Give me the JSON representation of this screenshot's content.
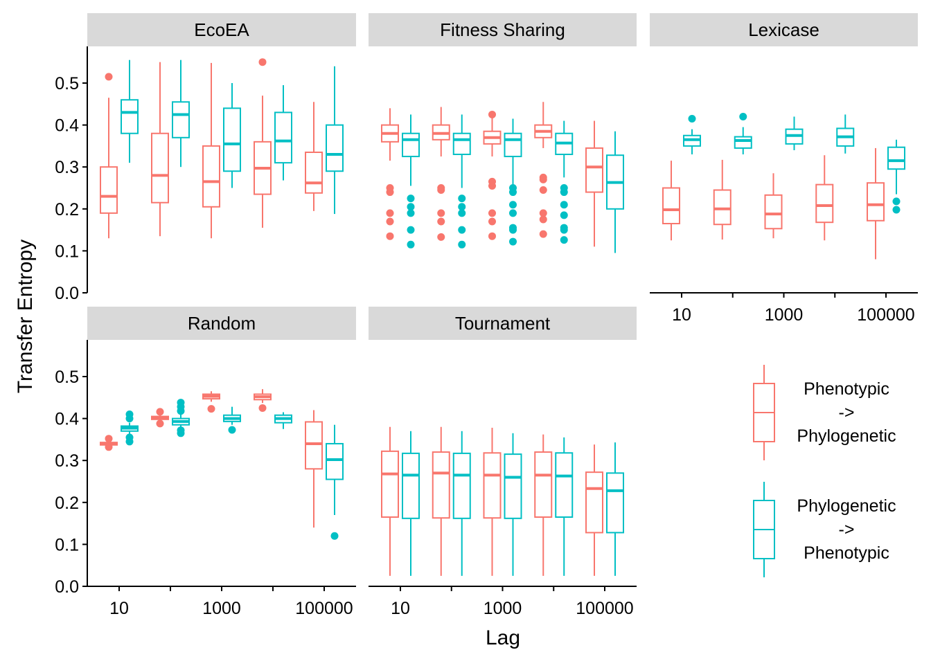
{
  "chart_data": {
    "type": "boxplot",
    "xlabel": "Lag",
    "ylabel": "Transfer Entropy",
    "x_scale": "log10",
    "x_tick_labels": [
      "10",
      "1000",
      "100000"
    ],
    "ylim": [
      0,
      0.55
    ],
    "y_ticks": [
      "0.0",
      "0.1",
      "0.2",
      "0.3",
      "0.4",
      "0.5"
    ],
    "grid": false,
    "legend_position": "right",
    "colors": {
      "Phenotypic -> Phylogenetic": "#F8766D",
      "Phylogenetic -> Phenotypic": "#00BFC4"
    },
    "series": [
      {
        "name": "Phenotypic -> Phylogenetic",
        "label_lines": [
          "Phenotypic",
          "->",
          "Phylogenetic"
        ],
        "color": "#F8766D"
      },
      {
        "name": "Phylogenetic -> Phenotypic",
        "label_lines": [
          "Phylogenetic",
          "->",
          "Phenotypic"
        ],
        "color": "#00BFC4"
      }
    ],
    "panels": [
      {
        "title": "EcoEA",
        "boxes": [
          {
            "lag": 10,
            "series": 0,
            "min": 0.13,
            "q1": 0.19,
            "median": 0.23,
            "q3": 0.3,
            "max": 0.465,
            "outliers": [
              0.515
            ]
          },
          {
            "lag": 10,
            "series": 1,
            "min": 0.31,
            "q1": 0.38,
            "median": 0.43,
            "q3": 0.46,
            "max": 0.555,
            "outliers": []
          },
          {
            "lag": 100,
            "series": 0,
            "min": 0.135,
            "q1": 0.215,
            "median": 0.28,
            "q3": 0.38,
            "max": 0.55,
            "outliers": []
          },
          {
            "lag": 100,
            "series": 1,
            "min": 0.3,
            "q1": 0.37,
            "median": 0.425,
            "q3": 0.455,
            "max": 0.555,
            "outliers": []
          },
          {
            "lag": 1000,
            "series": 0,
            "min": 0.13,
            "q1": 0.205,
            "median": 0.265,
            "q3": 0.35,
            "max": 0.548,
            "outliers": []
          },
          {
            "lag": 1000,
            "series": 1,
            "min": 0.25,
            "q1": 0.29,
            "median": 0.355,
            "q3": 0.44,
            "max": 0.5,
            "outliers": []
          },
          {
            "lag": 10000,
            "series": 0,
            "min": 0.155,
            "q1": 0.235,
            "median": 0.297,
            "q3": 0.36,
            "max": 0.47,
            "outliers": [
              0.55
            ]
          },
          {
            "lag": 10000,
            "series": 1,
            "min": 0.268,
            "q1": 0.31,
            "median": 0.362,
            "q3": 0.43,
            "max": 0.495,
            "outliers": []
          },
          {
            "lag": 100000,
            "series": 0,
            "min": 0.195,
            "q1": 0.238,
            "median": 0.262,
            "q3": 0.335,
            "max": 0.455,
            "outliers": []
          },
          {
            "lag": 100000,
            "series": 1,
            "min": 0.188,
            "q1": 0.29,
            "median": 0.33,
            "q3": 0.4,
            "max": 0.54,
            "outliers": []
          }
        ]
      },
      {
        "title": "Fitness Sharing",
        "boxes": [
          {
            "lag": 10,
            "series": 0,
            "min": 0.315,
            "q1": 0.36,
            "median": 0.38,
            "q3": 0.4,
            "max": 0.44,
            "outliers": [
              0.24,
              0.25,
              0.19,
              0.17,
              0.135
            ]
          },
          {
            "lag": 10,
            "series": 1,
            "min": 0.255,
            "q1": 0.325,
            "median": 0.365,
            "q3": 0.38,
            "max": 0.425,
            "outliers": [
              0.225,
              0.205,
              0.19,
              0.15,
              0.115
            ]
          },
          {
            "lag": 100,
            "series": 0,
            "min": 0.325,
            "q1": 0.365,
            "median": 0.38,
            "q3": 0.4,
            "max": 0.443,
            "outliers": [
              0.245,
              0.25,
              0.19,
              0.17,
              0.133
            ]
          },
          {
            "lag": 100,
            "series": 1,
            "min": 0.25,
            "q1": 0.33,
            "median": 0.365,
            "q3": 0.38,
            "max": 0.425,
            "outliers": [
              0.225,
              0.205,
              0.19,
              0.15,
              0.115
            ]
          },
          {
            "lag": 1000,
            "series": 0,
            "min": 0.325,
            "q1": 0.355,
            "median": 0.37,
            "q3": 0.385,
            "max": 0.425,
            "outliers": [
              0.425,
              0.265,
              0.255,
              0.19,
              0.17,
              0.135
            ]
          },
          {
            "lag": 1000,
            "series": 1,
            "min": 0.255,
            "q1": 0.325,
            "median": 0.365,
            "q3": 0.38,
            "max": 0.415,
            "outliers": [
              0.25,
              0.24,
              0.21,
              0.19,
              0.155,
              0.15,
              0.122
            ]
          },
          {
            "lag": 10000,
            "series": 0,
            "min": 0.345,
            "q1": 0.37,
            "median": 0.385,
            "q3": 0.4,
            "max": 0.455,
            "outliers": [
              0.275,
              0.27,
              0.245,
              0.19,
              0.175,
              0.14
            ]
          },
          {
            "lag": 10000,
            "series": 1,
            "min": 0.275,
            "q1": 0.33,
            "median": 0.357,
            "q3": 0.38,
            "max": 0.41,
            "outliers": [
              0.25,
              0.24,
              0.21,
              0.185,
              0.155,
              0.15,
              0.126
            ]
          },
          {
            "lag": 100000,
            "series": 0,
            "min": 0.11,
            "q1": 0.24,
            "median": 0.3,
            "q3": 0.345,
            "max": 0.41,
            "outliers": []
          },
          {
            "lag": 100000,
            "series": 1,
            "min": 0.095,
            "q1": 0.2,
            "median": 0.263,
            "q3": 0.328,
            "max": 0.385,
            "outliers": []
          }
        ]
      },
      {
        "title": "Lexicase",
        "boxes": [
          {
            "lag": 10,
            "series": 0,
            "min": 0.125,
            "q1": 0.165,
            "median": 0.198,
            "q3": 0.25,
            "max": 0.315,
            "outliers": []
          },
          {
            "lag": 10,
            "series": 1,
            "min": 0.33,
            "q1": 0.35,
            "median": 0.365,
            "q3": 0.375,
            "max": 0.39,
            "outliers": [
              0.415
            ]
          },
          {
            "lag": 100,
            "series": 0,
            "min": 0.127,
            "q1": 0.163,
            "median": 0.2,
            "q3": 0.245,
            "max": 0.317,
            "outliers": []
          },
          {
            "lag": 100,
            "series": 1,
            "min": 0.33,
            "q1": 0.345,
            "median": 0.363,
            "q3": 0.372,
            "max": 0.395,
            "outliers": [
              0.42
            ]
          },
          {
            "lag": 1000,
            "series": 0,
            "min": 0.13,
            "q1": 0.153,
            "median": 0.188,
            "q3": 0.233,
            "max": 0.285,
            "outliers": []
          },
          {
            "lag": 1000,
            "series": 1,
            "min": 0.34,
            "q1": 0.355,
            "median": 0.375,
            "q3": 0.39,
            "max": 0.42,
            "outliers": []
          },
          {
            "lag": 10000,
            "series": 0,
            "min": 0.125,
            "q1": 0.168,
            "median": 0.208,
            "q3": 0.258,
            "max": 0.328,
            "outliers": []
          },
          {
            "lag": 10000,
            "series": 1,
            "min": 0.332,
            "q1": 0.35,
            "median": 0.372,
            "q3": 0.392,
            "max": 0.425,
            "outliers": []
          },
          {
            "lag": 100000,
            "series": 0,
            "min": 0.08,
            "q1": 0.172,
            "median": 0.21,
            "q3": 0.262,
            "max": 0.345,
            "outliers": []
          },
          {
            "lag": 100000,
            "series": 1,
            "min": 0.235,
            "q1": 0.295,
            "median": 0.315,
            "q3": 0.347,
            "max": 0.365,
            "outliers": [
              0.218,
              0.198
            ]
          }
        ]
      },
      {
        "title": "Random",
        "boxes": [
          {
            "lag": 10,
            "series": 0,
            "min": 0.335,
            "q1": 0.337,
            "median": 0.34,
            "q3": 0.343,
            "max": 0.347,
            "outliers": [
              0.352,
              0.332
            ]
          },
          {
            "lag": 10,
            "series": 1,
            "min": 0.36,
            "q1": 0.37,
            "median": 0.377,
            "q3": 0.382,
            "max": 0.39,
            "outliers": [
              0.41,
              0.4,
              0.355,
              0.345
            ]
          },
          {
            "lag": 100,
            "series": 0,
            "min": 0.395,
            "q1": 0.398,
            "median": 0.402,
            "q3": 0.405,
            "max": 0.41,
            "outliers": [
              0.416,
              0.388
            ]
          },
          {
            "lag": 100,
            "series": 1,
            "min": 0.375,
            "q1": 0.385,
            "median": 0.393,
            "q3": 0.4,
            "max": 0.41,
            "outliers": [
              0.438,
              0.428,
              0.418,
              0.372,
              0.365
            ]
          },
          {
            "lag": 1000,
            "series": 0,
            "min": 0.44,
            "q1": 0.447,
            "median": 0.453,
            "q3": 0.458,
            "max": 0.465,
            "outliers": [
              0.423
            ]
          },
          {
            "lag": 1000,
            "series": 1,
            "min": 0.385,
            "q1": 0.393,
            "median": 0.4,
            "q3": 0.408,
            "max": 0.428,
            "outliers": [
              0.373
            ]
          },
          {
            "lag": 10000,
            "series": 0,
            "min": 0.437,
            "q1": 0.445,
            "median": 0.452,
            "q3": 0.458,
            "max": 0.47,
            "outliers": [
              0.425
            ]
          },
          {
            "lag": 10000,
            "series": 1,
            "min": 0.375,
            "q1": 0.39,
            "median": 0.4,
            "q3": 0.408,
            "max": 0.415,
            "outliers": []
          },
          {
            "lag": 100000,
            "series": 0,
            "min": 0.14,
            "q1": 0.28,
            "median": 0.34,
            "q3": 0.392,
            "max": 0.42,
            "outliers": []
          },
          {
            "lag": 100000,
            "series": 1,
            "min": 0.17,
            "q1": 0.255,
            "median": 0.302,
            "q3": 0.34,
            "max": 0.385,
            "outliers": [
              0.12
            ]
          }
        ]
      },
      {
        "title": "Tournament",
        "boxes": [
          {
            "lag": 10,
            "series": 0,
            "min": 0.025,
            "q1": 0.165,
            "median": 0.268,
            "q3": 0.322,
            "max": 0.38,
            "outliers": []
          },
          {
            "lag": 10,
            "series": 1,
            "min": 0.025,
            "q1": 0.162,
            "median": 0.265,
            "q3": 0.317,
            "max": 0.37,
            "outliers": []
          },
          {
            "lag": 100,
            "series": 0,
            "min": 0.025,
            "q1": 0.163,
            "median": 0.27,
            "q3": 0.32,
            "max": 0.38,
            "outliers": []
          },
          {
            "lag": 100,
            "series": 1,
            "min": 0.025,
            "q1": 0.162,
            "median": 0.265,
            "q3": 0.317,
            "max": 0.37,
            "outliers": []
          },
          {
            "lag": 1000,
            "series": 0,
            "min": 0.025,
            "q1": 0.163,
            "median": 0.265,
            "q3": 0.318,
            "max": 0.378,
            "outliers": []
          },
          {
            "lag": 1000,
            "series": 1,
            "min": 0.025,
            "q1": 0.162,
            "median": 0.26,
            "q3": 0.315,
            "max": 0.365,
            "outliers": []
          },
          {
            "lag": 10000,
            "series": 0,
            "min": 0.025,
            "q1": 0.165,
            "median": 0.265,
            "q3": 0.32,
            "max": 0.362,
            "outliers": []
          },
          {
            "lag": 10000,
            "series": 1,
            "min": 0.025,
            "q1": 0.165,
            "median": 0.263,
            "q3": 0.318,
            "max": 0.355,
            "outliers": []
          },
          {
            "lag": 100000,
            "series": 0,
            "min": 0.025,
            "q1": 0.128,
            "median": 0.233,
            "q3": 0.272,
            "max": 0.338,
            "outliers": []
          },
          {
            "lag": 100000,
            "series": 1,
            "min": 0.025,
            "q1": 0.128,
            "median": 0.228,
            "q3": 0.27,
            "max": 0.343,
            "outliers": []
          }
        ]
      }
    ]
  }
}
